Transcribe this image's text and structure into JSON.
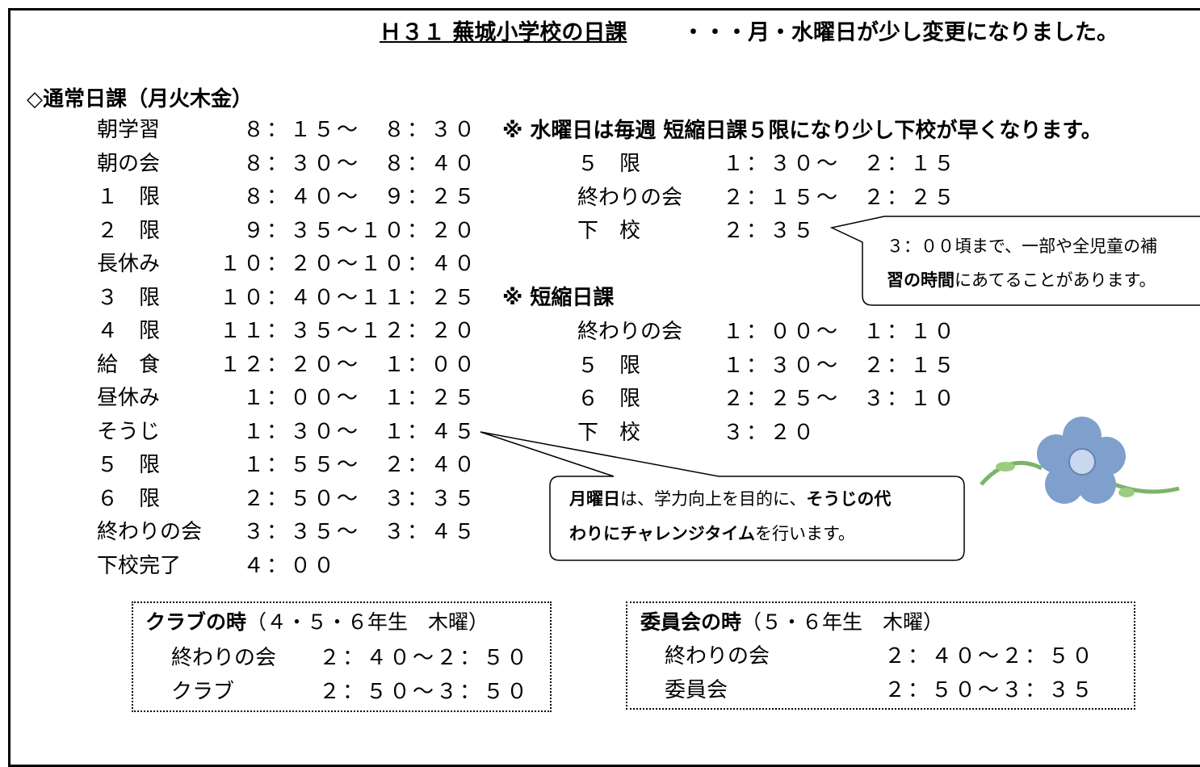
{
  "title": {
    "main": "Ｈ３１ 蕪城小学校の日課",
    "note": "・・・月・水曜日が少し変更になりました。"
  },
  "regular": {
    "heading": "◇通常日課（月火木金）",
    "rows": [
      [
        "朝学習",
        "　８：１５～　８：３０"
      ],
      [
        "朝の会",
        "　８：３０～　８：４０"
      ],
      [
        "１　限",
        "　８：４０～　９：２５"
      ],
      [
        "２　限",
        "　９：３５～１０：２０"
      ],
      [
        "長休み",
        "１０：２０～１０：４０"
      ],
      [
        "３　限",
        "１０：４０～１１：２５"
      ],
      [
        "４　限",
        "１１：３５～１２：２０"
      ],
      [
        "給　食",
        "１２：２０～　１：００"
      ],
      [
        "昼休み",
        "　１：００～　１：２５"
      ],
      [
        "そうじ",
        "　１：３０～　１：４５"
      ],
      [
        "５　限",
        "　１：５５～　２：４０"
      ],
      [
        "６　限",
        "　２：５０～　３：３５"
      ],
      [
        "終わりの会",
        "　３：３５～　３：４５"
      ],
      [
        "下校完了",
        "　４：００"
      ]
    ]
  },
  "wednesday": {
    "heading": "※ 水曜日は毎週 短縮日課５限になり少し下校が早くなります。",
    "rows": [
      [
        "５　限",
        "１：３０～　２：１５"
      ],
      [
        "終わりの会",
        "２：１５～　２：２５"
      ],
      [
        "下　校",
        "２：３５"
      ]
    ]
  },
  "short": {
    "heading": "※ 短縮日課",
    "rows": [
      [
        "終わりの会",
        "１：００～　１：１０"
      ],
      [
        "５　限",
        "１：３０～　２：１５"
      ],
      [
        "６　限",
        "２：２５～　３：１０"
      ],
      [
        "下　校",
        "３：２０"
      ]
    ]
  },
  "callout_hoshu": {
    "lines": [
      [
        {
          "text": "３：００頃まで、一部や全児童の補",
          "bold": false
        }
      ],
      [
        {
          "text": "習の時間",
          "bold": true
        },
        {
          "text": "にあてることがあります。",
          "bold": false
        }
      ]
    ]
  },
  "callout_monday": {
    "lines": [
      [
        {
          "text": "月曜日",
          "bold": true
        },
        {
          "text": "は、学力向上を目的に、",
          "bold": false
        },
        {
          "text": "そうじの代",
          "bold": true
        }
      ],
      [
        {
          "text": "わりにチャレンジタイム",
          "bold": true
        },
        {
          "text": "を行います。",
          "bold": false
        }
      ]
    ]
  },
  "club": {
    "title": "クラブの時",
    "note": "（４・５・６年生　木曜）",
    "rows": [
      [
        "終わりの会",
        "２：４０～２：５０"
      ],
      [
        "クラブ",
        "２：５０～３：５０"
      ]
    ]
  },
  "committee": {
    "title": "委員会の時",
    "note": "（５・６年生　木曜）",
    "rows": [
      [
        "終わりの会",
        "２：４０～２：５０"
      ],
      [
        "委員会",
        "２：５０～３：３５"
      ]
    ]
  }
}
